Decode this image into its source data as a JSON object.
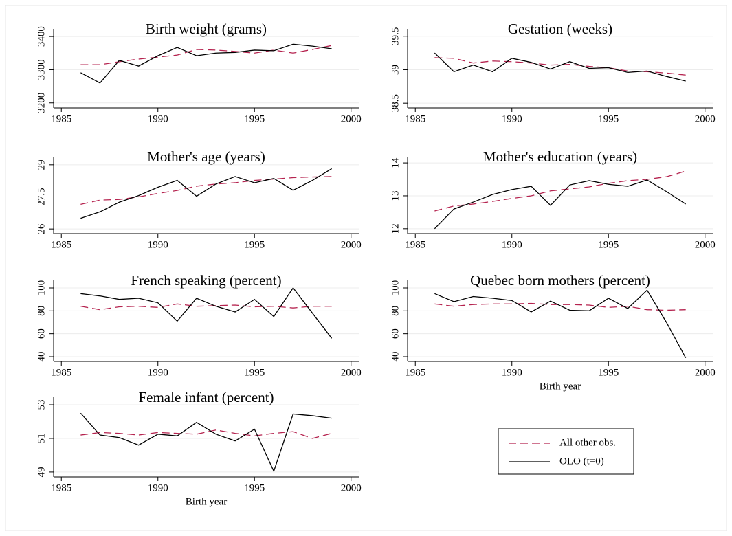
{
  "legend": [
    {
      "name": "All other obs.",
      "color": "#b5234f",
      "dash": true
    },
    {
      "name": "OLO (t=0)",
      "color": "#000000",
      "dash": false
    }
  ],
  "chart_data": [
    {
      "type": "line",
      "title": "Birth weight (grams)",
      "grid": true,
      "x": [
        1986,
        1987,
        1988,
        1989,
        1990,
        1991,
        1992,
        1993,
        1994,
        1995,
        1996,
        1997,
        1998,
        1999
      ],
      "series": [
        {
          "values": [
            3315,
            3315,
            3324,
            3332,
            3338,
            3344,
            3361,
            3359,
            3355,
            3350,
            3359,
            3350,
            3361,
            3373
          ]
        },
        {
          "values": [
            3291,
            3260,
            3328,
            3311,
            3342,
            3367,
            3342,
            3350,
            3352,
            3359,
            3357,
            3377,
            3371,
            3363
          ]
        }
      ],
      "xlim": [
        1984.6,
        2000.4
      ],
      "xticks": [
        1985,
        1990,
        1995,
        2000
      ],
      "ylim": [
        3185,
        3423
      ],
      "yticks": [
        3200,
        3300,
        3400
      ]
    },
    {
      "type": "line",
      "title": "Gestation (weeks)",
      "grid": true,
      "x": [
        1986,
        1987,
        1988,
        1989,
        1990,
        1991,
        1992,
        1993,
        1994,
        1995,
        1996,
        1997,
        1998,
        1999
      ],
      "series": [
        {
          "values": [
            39.18,
            39.17,
            39.1,
            39.13,
            39.12,
            39.1,
            39.07,
            39.08,
            39.05,
            39.03,
            38.98,
            38.97,
            38.95,
            38.92
          ]
        },
        {
          "values": [
            39.25,
            38.97,
            39.07,
            38.97,
            39.17,
            39.11,
            39.01,
            39.12,
            39.02,
            39.03,
            38.96,
            38.98,
            38.9,
            38.83
          ]
        }
      ],
      "xlim": [
        1984.6,
        2000.4
      ],
      "xticks": [
        1985,
        1990,
        1995,
        2000
      ],
      "ylim": [
        38.43,
        39.61
      ],
      "yticks": [
        38.5,
        39,
        39.5
      ]
    },
    {
      "type": "line",
      "title": "Mother's age (years)",
      "grid": true,
      "x": [
        1986,
        1987,
        1988,
        1989,
        1990,
        1991,
        1992,
        1993,
        1994,
        1995,
        1996,
        1997,
        1998,
        1999
      ],
      "series": [
        {
          "values": [
            27.15,
            27.35,
            27.38,
            27.5,
            27.66,
            27.8,
            28.0,
            28.1,
            28.16,
            28.27,
            28.33,
            28.4,
            28.43,
            28.45
          ]
        },
        {
          "values": [
            26.5,
            26.8,
            27.25,
            27.56,
            27.95,
            28.27,
            27.53,
            28.1,
            28.45,
            28.16,
            28.36,
            27.81,
            28.27,
            28.82
          ]
        }
      ],
      "xlim": [
        1984.6,
        2000.4
      ],
      "xticks": [
        1985,
        1990,
        1995,
        2000
      ],
      "ylim": [
        25.78,
        29.38
      ],
      "yticks": [
        26,
        27.5,
        29
      ]
    },
    {
      "type": "line",
      "title": "Mother's education (years)",
      "grid": true,
      "x": [
        1986,
        1987,
        1988,
        1989,
        1990,
        1991,
        1992,
        1993,
        1994,
        1995,
        1996,
        1997,
        1998,
        1999
      ],
      "series": [
        {
          "values": [
            12.54,
            12.69,
            12.75,
            12.83,
            12.92,
            13.0,
            13.15,
            13.21,
            13.27,
            13.38,
            13.46,
            13.5,
            13.58,
            13.75
          ]
        },
        {
          "values": [
            12.0,
            12.6,
            12.81,
            13.04,
            13.19,
            13.29,
            12.71,
            13.33,
            13.46,
            13.35,
            13.29,
            13.48,
            13.13,
            12.75
          ]
        }
      ],
      "xlim": [
        1984.6,
        2000.4
      ],
      "xticks": [
        1985,
        1990,
        1995,
        2000
      ],
      "ylim": [
        11.85,
        14.19
      ],
      "yticks": [
        12,
        13,
        14
      ]
    },
    {
      "type": "line",
      "title": "French speaking (percent)",
      "grid": true,
      "x": [
        1986,
        1987,
        1988,
        1989,
        1990,
        1991,
        1992,
        1993,
        1994,
        1995,
        1996,
        1997,
        1998,
        1999
      ],
      "series": [
        {
          "values": [
            84,
            81,
            83.5,
            84,
            83,
            86,
            84,
            84.5,
            85,
            83.5,
            84,
            82.5,
            84,
            84
          ]
        },
        {
          "values": [
            95,
            93,
            90,
            91,
            87,
            71,
            91,
            84,
            79,
            90,
            75,
            100,
            78,
            56
          ]
        }
      ],
      "xlim": [
        1984.6,
        2000.4
      ],
      "xticks": [
        1985,
        1990,
        1995,
        2000
      ],
      "ylim": [
        35.8,
        106.6
      ],
      "yticks": [
        40,
        60,
        80,
        100
      ]
    },
    {
      "type": "line",
      "title": "Quebec born mothers (percent)",
      "grid": true,
      "xlabel": "Birth year",
      "x": [
        1986,
        1987,
        1988,
        1989,
        1990,
        1991,
        1992,
        1993,
        1994,
        1995,
        1996,
        1997,
        1998,
        1999
      ],
      "series": [
        {
          "values": [
            86,
            84,
            85.5,
            86,
            86,
            86.5,
            85.5,
            85.5,
            85,
            83,
            84,
            81,
            80.5,
            81
          ]
        },
        {
          "values": [
            95,
            88,
            92.5,
            91,
            89,
            79,
            88.5,
            80.5,
            80,
            91,
            82,
            98,
            70,
            39
          ]
        }
      ],
      "xlim": [
        1984.6,
        2000.4
      ],
      "xticks": [
        1985,
        1990,
        1995,
        2000
      ],
      "ylim": [
        35.8,
        106.6
      ],
      "yticks": [
        40,
        60,
        80,
        100
      ]
    },
    {
      "type": "line",
      "title": "Female infant (percent)",
      "grid": true,
      "xlabel": "Birth year",
      "x": [
        1986,
        1987,
        1988,
        1989,
        1990,
        1991,
        1992,
        1993,
        1994,
        1995,
        1996,
        1997,
        1998,
        1999
      ],
      "series": [
        {
          "values": [
            51.2,
            51.35,
            51.3,
            51.2,
            51.35,
            51.3,
            51.25,
            51.5,
            51.3,
            51.15,
            51.3,
            51.4,
            51.0,
            51.3
          ]
        },
        {
          "values": [
            52.5,
            51.2,
            51.05,
            50.6,
            51.25,
            51.15,
            51.95,
            51.25,
            50.85,
            51.55,
            49.05,
            52.45,
            52.35,
            52.2
          ]
        }
      ],
      "xlim": [
        1984.6,
        2000.4
      ],
      "xticks": [
        1985,
        1990,
        1995,
        2000
      ],
      "ylim": [
        48.71,
        53.45
      ],
      "yticks": [
        49,
        51,
        53
      ]
    }
  ]
}
